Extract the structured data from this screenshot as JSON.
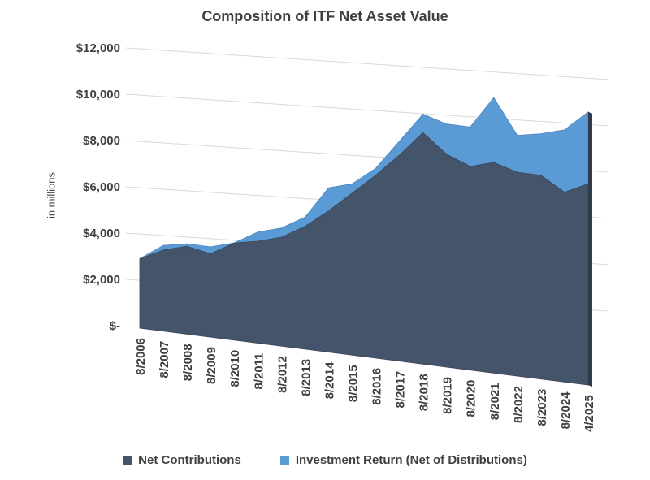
{
  "chart_data": {
    "type": "area",
    "title": "Composition of ITF Net Asset Value",
    "ylabel": "in millions",
    "xlabel": "",
    "ylim": [
      0,
      12000
    ],
    "y_ticks": [
      0,
      2000,
      4000,
      6000,
      8000,
      10000,
      12000
    ],
    "y_tick_labels": [
      "$-",
      "$2,000",
      "$4,000",
      "$6,000",
      "$8,000",
      "$10,000",
      "$12,000"
    ],
    "grid": true,
    "stacked": true,
    "perspective": "3d-area",
    "legend_position": "bottom",
    "categories": [
      "8/2006",
      "8/2007",
      "8/2008",
      "8/2009",
      "8/2010",
      "8/2011",
      "8/2012",
      "8/2013",
      "8/2014",
      "8/2015",
      "8/2016",
      "8/2017",
      "8/2018",
      "8/2019",
      "8/2020",
      "8/2021",
      "8/2022",
      "8/2023",
      "8/2024",
      "4/2025"
    ],
    "series": [
      {
        "name": "Net Contributions",
        "color": "#44546a",
        "values": [
          3000,
          3500,
          3800,
          3600,
          4200,
          4400,
          4700,
          5300,
          6100,
          7000,
          7900,
          8900,
          10000,
          9200,
          8800,
          9100,
          8800,
          8800,
          8200,
          8700
        ]
      },
      {
        "name": "Investment Return (Net of Distributions)",
        "color": "#5b9bd5",
        "values": [
          0,
          200,
          100,
          300,
          0,
          400,
          400,
          400,
          1000,
          400,
          300,
          600,
          800,
          1300,
          1700,
          2800,
          1600,
          1800,
          2700,
          3100
        ]
      }
    ]
  }
}
